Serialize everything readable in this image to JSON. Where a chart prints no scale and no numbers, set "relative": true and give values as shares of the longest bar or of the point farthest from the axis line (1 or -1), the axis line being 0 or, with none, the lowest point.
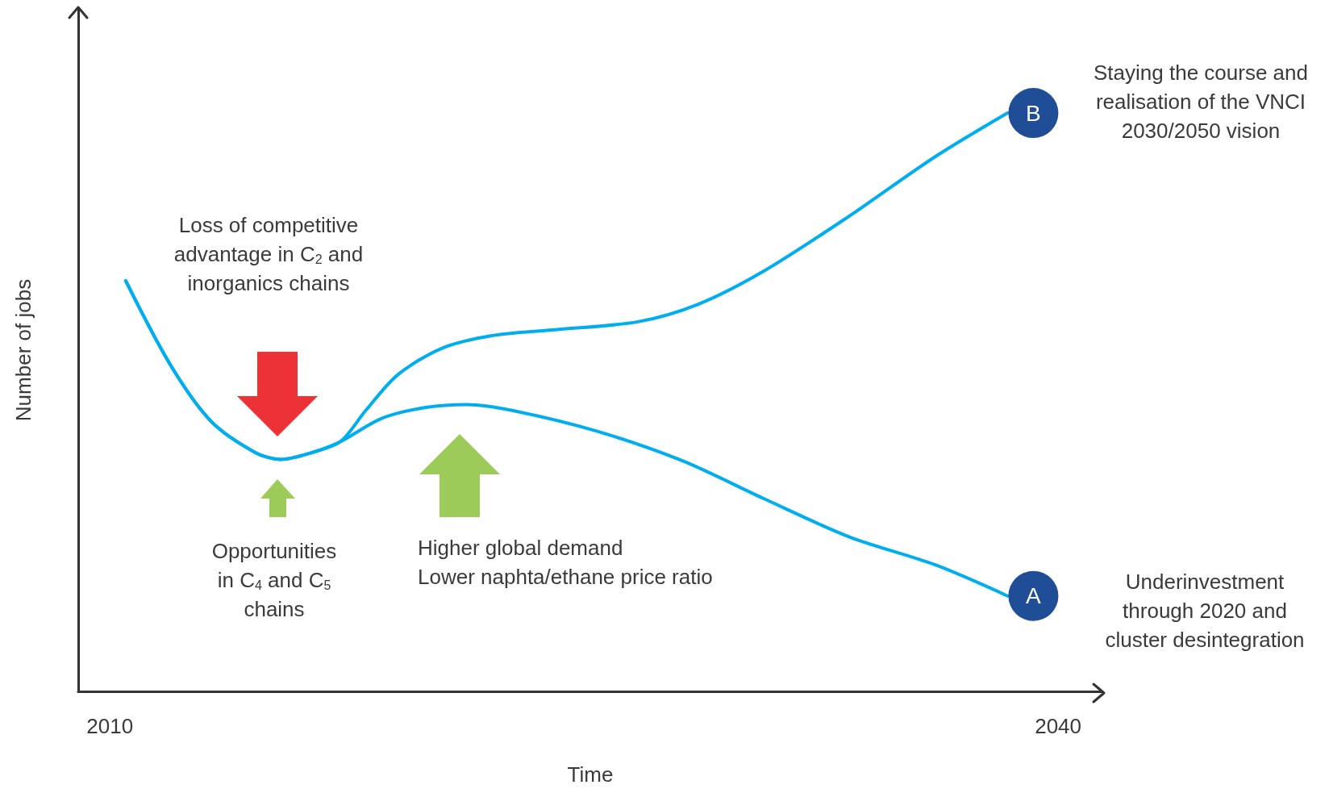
{
  "chart_data": {
    "type": "line",
    "relative": true,
    "xlabel": "Time",
    "ylabel": "Number of jobs",
    "xlim": [
      2009,
      2041.4
    ],
    "xticks": [
      2010,
      2040
    ],
    "grid": false,
    "legend": false,
    "marker": "none",
    "line_style": "solid",
    "series": [
      {
        "name": "B",
        "color": "#00aeef",
        "x": [
          2010.5,
          2011.9,
          2013.2,
          2014.6,
          2015.4,
          2016.4,
          2017.3,
          2018.1,
          2019.1,
          2020.5,
          2022.1,
          2024.0,
          2026.7,
          2028.6,
          2030.7,
          2033.4,
          2036.1,
          2038.4
        ],
        "values": [
          0.71,
          0.566,
          0.467,
          0.413,
          0.401,
          0.413,
          0.432,
          0.486,
          0.547,
          0.593,
          0.615,
          0.625,
          0.639,
          0.669,
          0.727,
          0.822,
          0.924,
          1.0
        ]
      },
      {
        "name": "A",
        "color": "#00aeef",
        "x": [
          2010.5,
          2011.9,
          2013.2,
          2014.6,
          2015.4,
          2016.4,
          2017.3,
          2018.6,
          2020.0,
          2021.3,
          2022.7,
          2025.4,
          2028.1,
          2030.7,
          2033.4,
          2036.1,
          2038.4
        ],
        "values": [
          0.71,
          0.566,
          0.467,
          0.413,
          0.401,
          0.413,
          0.432,
          0.472,
          0.491,
          0.496,
          0.486,
          0.45,
          0.399,
          0.333,
          0.267,
          0.219,
          0.165
        ]
      }
    ],
    "annotations": [
      "Loss of competitive\nadvantage in C$_{2}$ and\ninorganics chains",
      "Opportunities\nin C$_{4}$ and C$_{5}$\nchains",
      "Higher global demand\nLower naphta/ethane price ratio",
      "Staying the course and\nrealisation of the VNCI\n2030/2050 vision",
      "Underinvestment\nthrough 2020 and\ncluster desintegration"
    ]
  }
}
